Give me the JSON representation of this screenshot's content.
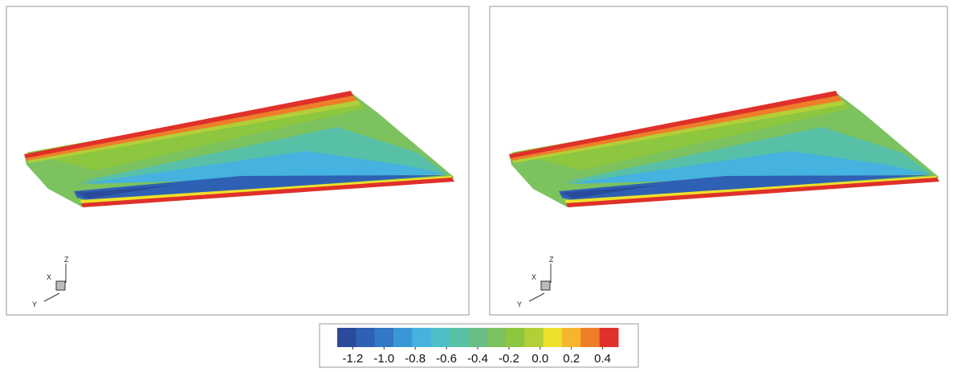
{
  "panels": [
    {
      "axes": {
        "z": "Z",
        "x": "X",
        "y": "Y"
      }
    },
    {
      "axes": {
        "z": "Z",
        "x": "X",
        "y": "Y"
      }
    }
  ],
  "colorbar": {
    "range": [
      -1.3,
      0.5
    ],
    "colors": [
      "#2a4a9c",
      "#2e60b3",
      "#3178c6",
      "#3b96d6",
      "#45b2df",
      "#4dbfc8",
      "#57c0a7",
      "#67bf86",
      "#7cc25f",
      "#8dc63f",
      "#b3cf38",
      "#efe02a",
      "#f6b52c",
      "#f07d2a",
      "#e0302a"
    ],
    "ticks": [
      -1.2,
      {
        "value": -1.0,
        "label": "-1.0"
      },
      -0.8,
      -0.6,
      -0.4,
      -0.2,
      {
        "value": 0.0,
        "label": "0.0"
      },
      0.2,
      0.4
    ]
  }
}
